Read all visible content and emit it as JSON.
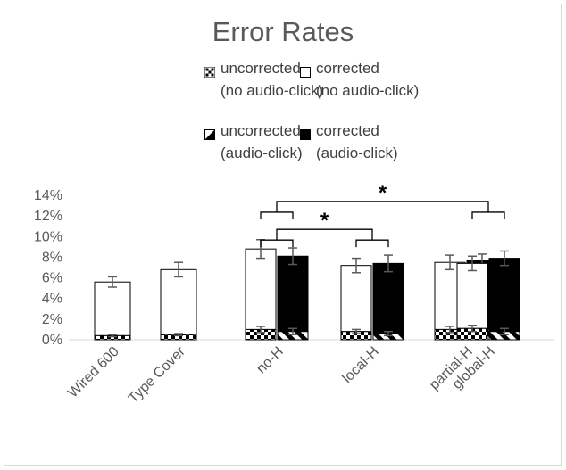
{
  "chart_data": {
    "type": "bar",
    "title": "Error Rates",
    "categories": [
      "Wired 600",
      "Type Cover",
      "no-H",
      "local-H",
      "partial-H",
      "global-H"
    ],
    "ylim": [
      0,
      14
    ],
    "yticks": [
      "0%",
      "2%",
      "4%",
      "6%",
      "8%",
      "10%",
      "12%",
      "14%"
    ],
    "grid": false,
    "legend": {
      "placement": "top",
      "entries": [
        {
          "key": "uncorrected_no_click",
          "label": "uncorrected\n(no audio-click)",
          "pattern": "checker"
        },
        {
          "key": "corrected_no_click",
          "label": "corrected\n(no audio-click)",
          "pattern": "white"
        },
        {
          "key": "uncorrected_click",
          "label": "uncorrected\n(audio-click)",
          "pattern": "diagonal"
        },
        {
          "key": "corrected_click",
          "label": "corrected\n(audio-click)",
          "pattern": "black"
        }
      ]
    },
    "bars": [
      {
        "category": "Wired 600",
        "condition": "no audio-click",
        "uncorrected": 0.4,
        "uncorrected_err": 0.1,
        "total": 5.6,
        "total_err": 0.5
      },
      {
        "category": "Type Cover",
        "condition": "no audio-click",
        "uncorrected": 0.5,
        "uncorrected_err": 0.1,
        "total": 6.8,
        "total_err": 0.7
      },
      {
        "category": "no-H",
        "condition": "no audio-click",
        "uncorrected": 1.0,
        "uncorrected_err": 0.3,
        "total": 8.8,
        "total_err": 0.9
      },
      {
        "category": "no-H",
        "condition": "audio-click",
        "uncorrected": 0.8,
        "uncorrected_err": 0.3,
        "total": 8.1,
        "total_err": 0.8
      },
      {
        "category": "local-H",
        "condition": "no audio-click",
        "uncorrected": 0.8,
        "uncorrected_err": 0.2,
        "total": 7.2,
        "total_err": 0.7
      },
      {
        "category": "local-H",
        "condition": "audio-click",
        "uncorrected": 0.6,
        "uncorrected_err": 0.2,
        "total": 7.4,
        "total_err": 0.8
      },
      {
        "category": "partial-H",
        "condition": "no audio-click",
        "uncorrected": 1.0,
        "uncorrected_err": 0.3,
        "total": 7.5,
        "total_err": 0.7
      },
      {
        "category": "partial-H",
        "condition": "audio-click",
        "uncorrected": 1.0,
        "uncorrected_err": 0.4,
        "total": 7.7,
        "total_err": 0.6
      },
      {
        "category": "global-H",
        "condition": "no audio-click",
        "uncorrected": 1.1,
        "uncorrected_err": 0.3,
        "total": 7.4,
        "total_err": 0.7
      },
      {
        "category": "global-H",
        "condition": "audio-click",
        "uncorrected": 0.8,
        "uncorrected_err": 0.3,
        "total": 7.9,
        "total_err": 0.7
      }
    ],
    "annotations": [
      {
        "text": "*",
        "from": "no-H",
        "to": "global-H",
        "level": 13.4
      },
      {
        "text": "*",
        "from": "no-H",
        "to": "local-H",
        "level": 10.7
      }
    ]
  }
}
